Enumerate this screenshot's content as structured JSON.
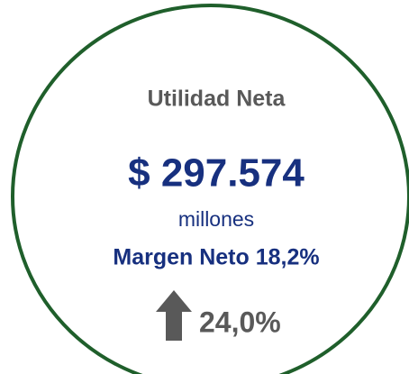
{
  "card": {
    "title": "Utilidad Neta",
    "amount": "$ 297.574",
    "unit": "millones",
    "margin": "Margen Neto 18,2%",
    "change": "24,0%"
  }
}
